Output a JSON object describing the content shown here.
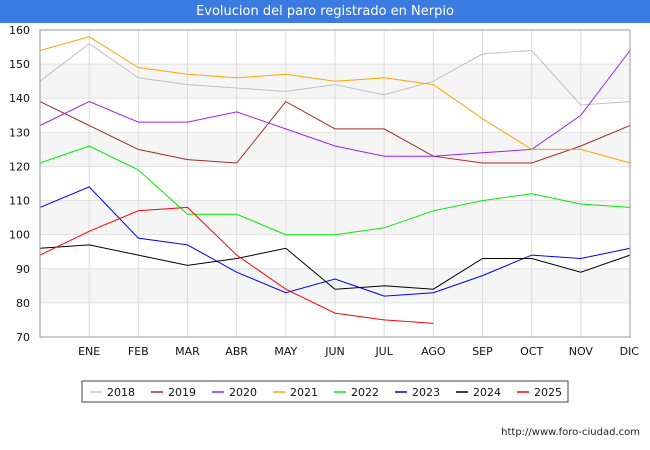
{
  "page": {
    "title": "Evolucion del paro registrado en Nerpio",
    "footer": "http://www.foro-ciudad.com"
  },
  "chart_data": {
    "type": "line",
    "title": "Evolucion del paro registrado en Nerpio",
    "categories": [
      "",
      "ENE",
      "FEB",
      "MAR",
      "ABR",
      "MAY",
      "JUN",
      "JUL",
      "AGO",
      "SEP",
      "OCT",
      "NOV",
      "DIC"
    ],
    "ylim": [
      70,
      160
    ],
    "yticks": [
      70,
      80,
      90,
      100,
      110,
      120,
      130,
      140,
      150,
      160
    ],
    "grid": true,
    "legend_position": "bottom",
    "series": [
      {
        "name": "2018",
        "color": "#c0c0c0",
        "values": [
          145,
          156,
          146,
          144,
          143,
          142,
          144,
          141,
          145,
          153,
          154,
          138,
          139
        ]
      },
      {
        "name": "2019",
        "color": "#a52a2a",
        "values": [
          139,
          132,
          125,
          122,
          121,
          139,
          131,
          131,
          123,
          121,
          121,
          126,
          132
        ]
      },
      {
        "name": "2020",
        "color": "#a020f0",
        "values": [
          132,
          139,
          133,
          133,
          136,
          131,
          126,
          123,
          123,
          124,
          125,
          135,
          154
        ]
      },
      {
        "name": "2021",
        "color": "#ffa500",
        "values": [
          154,
          158,
          149,
          147,
          146,
          147,
          145,
          146,
          144,
          134,
          125,
          125,
          121
        ]
      },
      {
        "name": "2022",
        "color": "#00ee00",
        "values": [
          121,
          126,
          119,
          106,
          106,
          100,
          100,
          102,
          107,
          110,
          112,
          109,
          108
        ]
      },
      {
        "name": "2023",
        "color": "#0000ff",
        "values": [
          108,
          114,
          99,
          97,
          89,
          83,
          87,
          82,
          83,
          88,
          94,
          93,
          96
        ]
      },
      {
        "name": "2024",
        "color": "#000000",
        "values": [
          96,
          97,
          94,
          91,
          93,
          96,
          84,
          85,
          84,
          93,
          93,
          89,
          94
        ]
      },
      {
        "name": "2025",
        "color": "#ff0000",
        "values": [
          94,
          101,
          107,
          108,
          94,
          84,
          77,
          75,
          74,
          null,
          null,
          null,
          null
        ]
      }
    ]
  }
}
